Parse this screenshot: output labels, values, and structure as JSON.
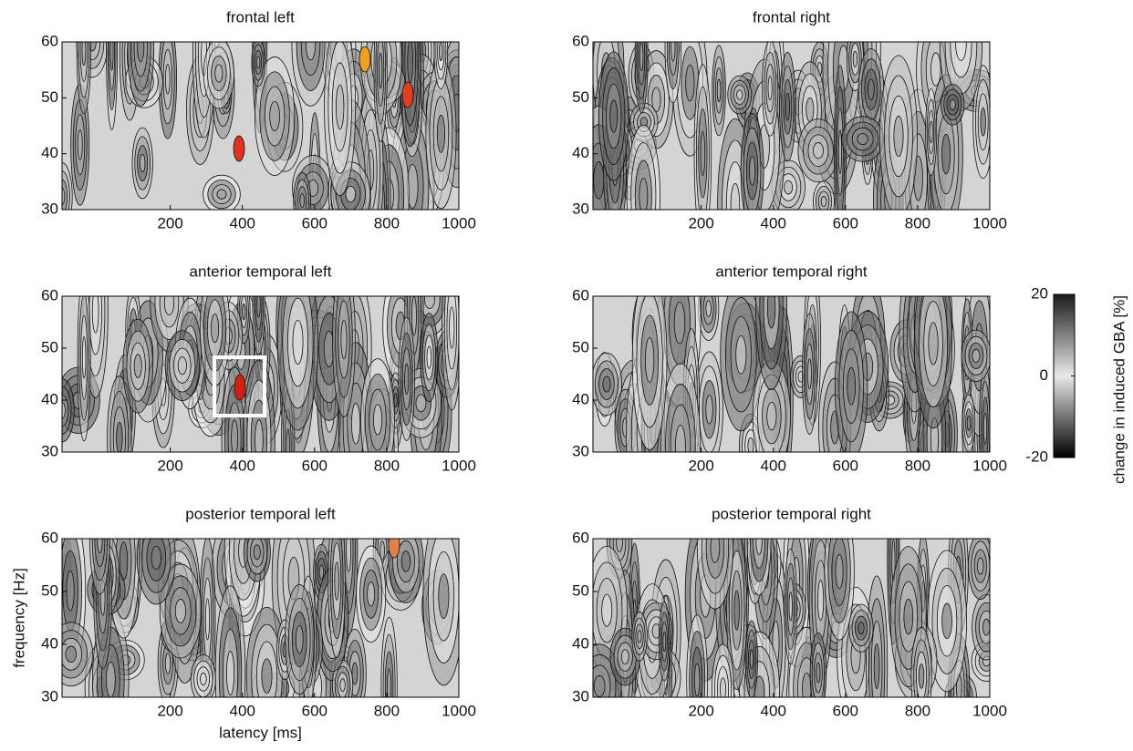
{
  "chart_data": [
    {
      "type": "contour",
      "title": "frontal left",
      "xlim": [
        -100,
        1000
      ],
      "ylim": [
        30,
        60
      ],
      "xticks": [
        200,
        400,
        600,
        800,
        1000
      ],
      "yticks": [
        30,
        40,
        50,
        60
      ]
    },
    {
      "type": "contour",
      "title": "frontal right",
      "xlim": [
        -100,
        1000
      ],
      "ylim": [
        30,
        60
      ],
      "xticks": [
        200,
        400,
        600,
        800,
        1000
      ],
      "yticks": [
        30,
        40,
        50,
        60
      ]
    },
    {
      "type": "contour",
      "title": "anterior temporal left",
      "xlim": [
        -100,
        1000
      ],
      "ylim": [
        30,
        60
      ],
      "xticks": [
        200,
        400,
        600,
        800,
        1000
      ],
      "yticks": [
        30,
        40,
        50,
        60
      ]
    },
    {
      "type": "contour",
      "title": "anterior temporal right",
      "xlim": [
        -100,
        1000
      ],
      "ylim": [
        30,
        60
      ],
      "xticks": [
        200,
        400,
        600,
        800,
        1000
      ],
      "yticks": [
        30,
        40,
        50,
        60
      ]
    },
    {
      "type": "contour",
      "title": "posterior temporal left",
      "x_label": "latency [ms]",
      "y_label": "frequency [Hz]",
      "xlim": [
        -100,
        1000
      ],
      "ylim": [
        30,
        60
      ],
      "xticks": [
        200,
        400,
        600,
        800,
        1000
      ],
      "yticks": [
        30,
        40,
        50,
        60
      ]
    },
    {
      "type": "contour",
      "title": "posterior temporal right",
      "xlim": [
        -100,
        1000
      ],
      "ylim": [
        30,
        60
      ],
      "xticks": [
        200,
        400,
        600,
        800,
        1000
      ],
      "yticks": [
        30,
        40,
        50,
        60
      ]
    },
    {
      "type": "colorbar",
      "label": "change in induced GBA [%]",
      "ylim": [
        -20,
        20
      ],
      "yticks": [
        -20,
        0,
        20
      ]
    }
  ]
}
